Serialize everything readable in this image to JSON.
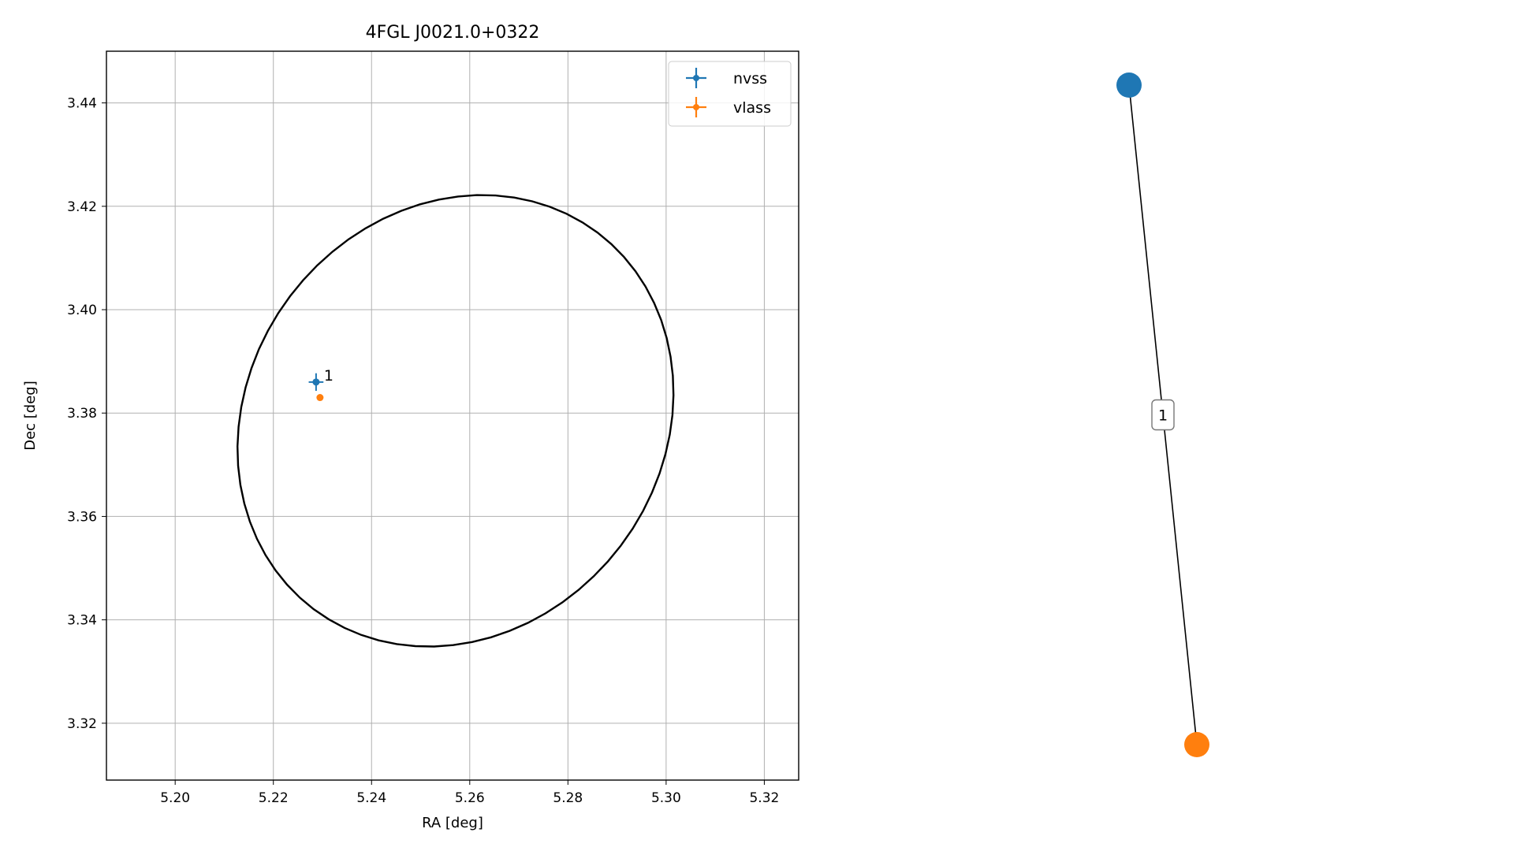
{
  "chart_data": [
    {
      "type": "scatter",
      "title": "4FGL J0021.0+0322",
      "xlabel": "RA [deg]",
      "ylabel": "Dec [deg]",
      "xlim": [
        5.186,
        5.327
      ],
      "ylim": [
        3.309,
        3.45
      ],
      "x_ticks": [
        5.2,
        5.22,
        5.24,
        5.26,
        5.28,
        5.3,
        5.32
      ],
      "y_ticks": [
        3.32,
        3.34,
        3.36,
        3.38,
        3.4,
        3.42,
        3.44
      ],
      "grid": true,
      "legend_position": "top-right",
      "series": [
        {
          "name": "nvss",
          "color": "#1f77b4",
          "x": [
            5.2287
          ],
          "y": [
            3.386
          ],
          "xerr": [
            0.0015
          ],
          "yerr": [
            0.0017
          ]
        },
        {
          "name": "vlass",
          "color": "#ff7f0e",
          "x": [
            5.2295
          ],
          "y": [
            3.383
          ]
        }
      ],
      "annotations": [
        {
          "text": "1",
          "x": 5.2287,
          "y": 3.386
        }
      ],
      "ellipse": {
        "center": [
          5.2571,
          3.3785
        ],
        "ra_semi_axis": 0.0422,
        "dec_semi_axis": 0.0456,
        "angle_deg": 37,
        "color": "#000000"
      }
    },
    {
      "type": "network",
      "nodes": [
        {
          "name": "nvss",
          "color": "#1f77b4"
        },
        {
          "name": "vlass",
          "color": "#ff7f0e"
        }
      ],
      "edges": [
        {
          "source": "nvss",
          "target": "vlass",
          "label": "1"
        }
      ]
    }
  ]
}
